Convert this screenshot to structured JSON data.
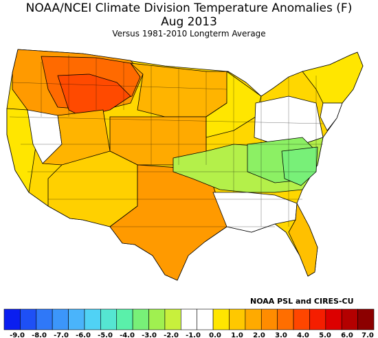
{
  "title": "NOAA/NCEI Climate Division Temperature Anomalies (F)",
  "period": "Aug 2013",
  "subtitle": "Versus 1981-2010 Longterm Average",
  "credit": "NOAA PSL and CIRES-CU",
  "legend": {
    "colors": [
      "#0a1ef0",
      "#1e50f5",
      "#2f78f8",
      "#3c96fa",
      "#4ab4fb",
      "#50d2f5",
      "#55e6d2",
      "#5af0aa",
      "#78f078",
      "#a0f050",
      "#c8f03c",
      "#ffffff",
      "#ffffff",
      "#ffe600",
      "#ffc800",
      "#ffaa00",
      "#ff8c00",
      "#ff6e00",
      "#ff4600",
      "#f51e00",
      "#dc0000",
      "#b40000",
      "#8c0000"
    ],
    "ticks": [
      "-9.0",
      "-8.0",
      "-7.0",
      "-6.0",
      "-5.0",
      "-4.0",
      "-3.0",
      "-2.0",
      "-1.0",
      "0.0",
      "1.0",
      "2.0",
      "3.0",
      "4.0",
      "5.0",
      "6.0",
      "7.0"
    ]
  }
}
